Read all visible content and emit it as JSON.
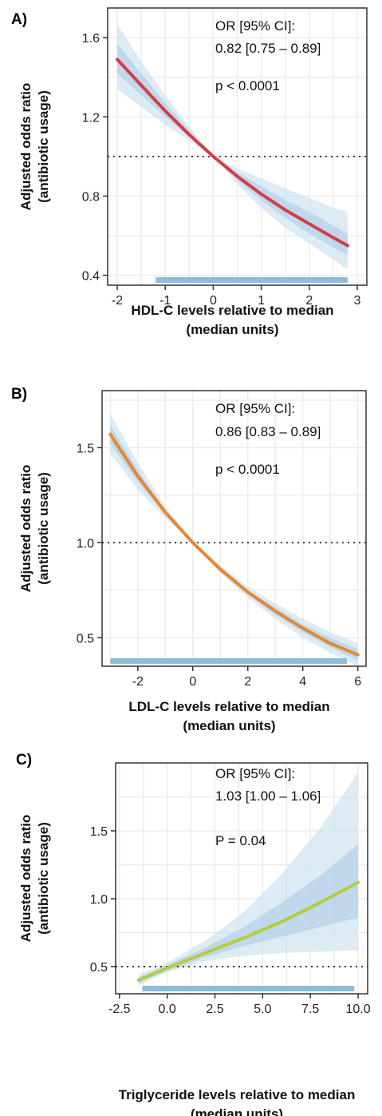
{
  "chart_data": [
    {
      "type": "line",
      "panel_label": "A)",
      "xlabel": [
        "HDL-C levels  relative to median",
        "(median units)"
      ],
      "ylabel": [
        "Adjusted odds ratio",
        "(antibiotic usage)"
      ],
      "xlim": [
        -2.2,
        3.2
      ],
      "ylim": [
        0.35,
        1.75
      ],
      "xticks": [
        -2,
        -1,
        0,
        1,
        2,
        3
      ],
      "xtick_labels": [
        "-2",
        "-1",
        "0",
        "1",
        "2",
        "3"
      ],
      "yticks": [
        0.4,
        0.8,
        1.2,
        1.6
      ],
      "ytick_labels": [
        "0.4",
        "0.8",
        "1.2",
        "1.6"
      ],
      "reference_line": 1.0,
      "line_color": "#d63c44",
      "series": [
        {
          "x": [
            -2,
            -1.5,
            -1,
            -0.5,
            0,
            0.5,
            1,
            1.5,
            2,
            2.5,
            2.8
          ],
          "y": [
            1.49,
            1.36,
            1.23,
            1.11,
            1.0,
            0.9,
            0.81,
            0.73,
            0.66,
            0.59,
            0.55
          ],
          "ci_outer_low": [
            1.34,
            1.25,
            1.16,
            1.08,
            1.0,
            0.86,
            0.74,
            0.64,
            0.56,
            0.48,
            0.43
          ],
          "ci_outer_high": [
            1.67,
            1.48,
            1.31,
            1.15,
            1.0,
            0.94,
            0.89,
            0.84,
            0.79,
            0.74,
            0.72
          ],
          "ci_inner_low": [
            1.42,
            1.31,
            1.2,
            1.1,
            1.0,
            0.88,
            0.78,
            0.69,
            0.61,
            0.54,
            0.5
          ],
          "ci_inner_high": [
            1.57,
            1.42,
            1.27,
            1.13,
            1.0,
            0.92,
            0.85,
            0.78,
            0.72,
            0.65,
            0.61
          ]
        }
      ],
      "rug": {
        "from": -1.2,
        "to": 2.8
      },
      "annotations": [
        "OR  [95% CI]:",
        "0.82 [0.75 – 0.89]",
        "p < 0.0001"
      ]
    },
    {
      "type": "line",
      "panel_label": "B)",
      "xlabel": [
        "LDL-C levels  relative to median",
        "(median units)"
      ],
      "ylabel": [
        "Adjusted odds ratio",
        "(antibiotic usage)"
      ],
      "xlim": [
        -3.3,
        6.3
      ],
      "ylim": [
        0.35,
        1.8
      ],
      "xticks": [
        -2,
        0,
        2,
        4,
        6
      ],
      "xtick_labels": [
        "-2",
        "0",
        "2",
        "4",
        "6"
      ],
      "yticks": [
        0.5,
        1.0,
        1.5
      ],
      "ytick_labels": [
        "0.5",
        "1.0",
        "1.5"
      ],
      "reference_line": 1.0,
      "line_color": "#e8862f",
      "series": [
        {
          "x": [
            -3,
            -2,
            -1,
            0,
            1,
            2,
            3,
            4,
            5,
            6
          ],
          "y": [
            1.57,
            1.35,
            1.16,
            1.0,
            0.86,
            0.74,
            0.64,
            0.55,
            0.47,
            0.41
          ],
          "ci_outer_low": [
            1.47,
            1.28,
            1.13,
            1.0,
            0.84,
            0.71,
            0.6,
            0.5,
            0.42,
            0.35
          ],
          "ci_outer_high": [
            1.68,
            1.42,
            1.19,
            1.0,
            0.88,
            0.77,
            0.68,
            0.6,
            0.53,
            0.47
          ],
          "ci_inner_low": [
            1.52,
            1.32,
            1.15,
            1.0,
            0.85,
            0.73,
            0.62,
            0.53,
            0.45,
            0.38
          ],
          "ci_inner_high": [
            1.62,
            1.38,
            1.17,
            1.0,
            0.87,
            0.75,
            0.66,
            0.57,
            0.5,
            0.44
          ]
        }
      ],
      "rug": {
        "from": -3,
        "to": 5.6
      },
      "annotations": [
        "OR  [95% CI]:",
        "0.86 [0.83 – 0.89]",
        "p < 0.0001"
      ]
    },
    {
      "type": "line",
      "panel_label": "C)",
      "xlabel": [
        "Triglyceride  levels  relative  to median",
        "(median units)"
      ],
      "ylabel": [
        "Adjusted odds ratio",
        "(antibiotic usage)"
      ],
      "xlim": [
        -2.7,
        10.5
      ],
      "ylim": [
        0.3,
        2.0
      ],
      "xticks": [
        -2.5,
        0.0,
        2.5,
        5.0,
        7.5,
        10.0
      ],
      "xtick_labels": [
        "-2.5",
        "0.0",
        "2.5",
        "5.0",
        "7.5",
        "10.0"
      ],
      "yticks": [
        0.5,
        1.0,
        1.5
      ],
      "ytick_labels": [
        "0.5",
        "1.0",
        "1.5"
      ],
      "reference_line": 0.5,
      "line_color": "#b5cc40",
      "series": [
        {
          "x": [
            -1.5,
            0,
            2,
            4,
            6,
            8,
            10
          ],
          "y": [
            0.4,
            0.49,
            0.6,
            0.71,
            0.83,
            0.97,
            1.12
          ],
          "ci_outer_low": [
            0.36,
            0.46,
            0.54,
            0.58,
            0.6,
            0.61,
            0.62
          ],
          "ci_outer_high": [
            0.44,
            0.53,
            0.69,
            0.9,
            1.18,
            1.52,
            1.93
          ],
          "ci_inner_low": [
            0.38,
            0.47,
            0.57,
            0.65,
            0.72,
            0.79,
            0.86
          ],
          "ci_inner_high": [
            0.42,
            0.51,
            0.64,
            0.79,
            0.97,
            1.17,
            1.4
          ]
        }
      ],
      "rug": {
        "from": -1.3,
        "to": 9.8
      },
      "annotations": [
        "OR  [95% CI]:",
        "1.03 [1.00 – 1.06]",
        "P = 0.04"
      ]
    }
  ],
  "colors": {
    "ci_outer": "#cfe2f1",
    "ci_inner": "#b2d0e8",
    "rug": "#8fbcdc",
    "grid": "#ebebeb",
    "frame": "#333333",
    "reference": "#222222"
  }
}
